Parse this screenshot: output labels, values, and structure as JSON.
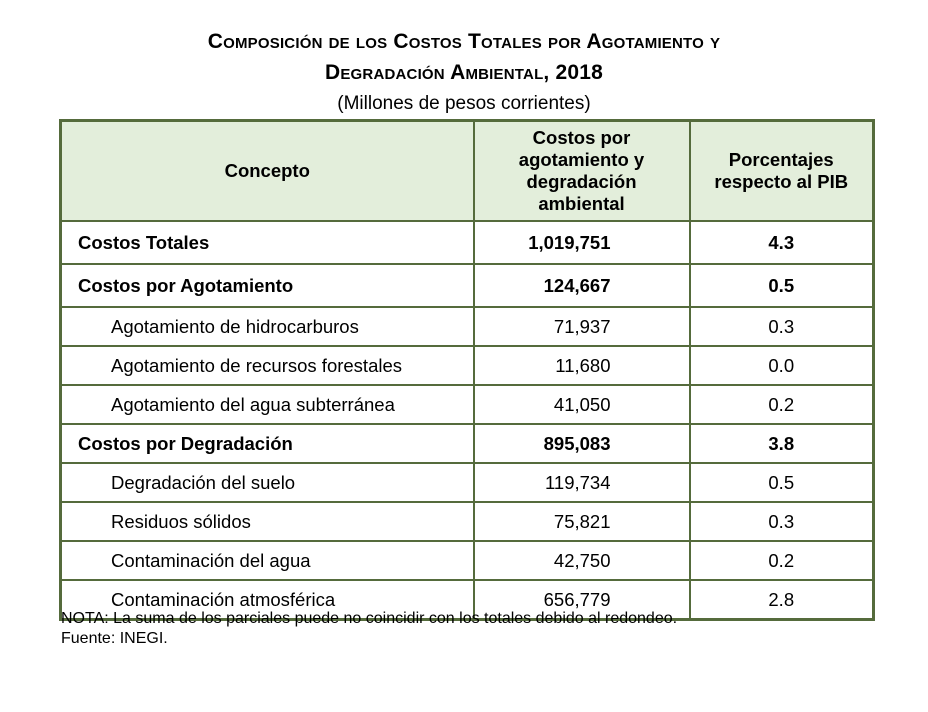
{
  "title_line1": "Composición de los Costos Totales por Agotamiento y",
  "title_line2": "Degradación Ambiental, 2018",
  "subtitle": "(Millones de pesos corrientes)",
  "headers": {
    "concepto": "Concepto",
    "costos": "Costos por agotamiento y degradación ambiental",
    "porcentajes": "Porcentajes respecto al PIB"
  },
  "rows": [
    {
      "concept": "Costos Totales",
      "value": "1,019,751",
      "pct": "4.3"
    },
    {
      "concept": "Costos por Agotamiento",
      "value": "124,667",
      "pct": "0.5"
    },
    {
      "concept": "Agotamiento de hidrocarburos",
      "value": "71,937",
      "pct": "0.3"
    },
    {
      "concept": "Agotamiento de recursos forestales",
      "value": "11,680",
      "pct": "0.0"
    },
    {
      "concept": "Agotamiento del agua subterránea",
      "value": "41,050",
      "pct": "0.2"
    },
    {
      "concept": "Costos por Degradación",
      "value": "895,083",
      "pct": "3.8"
    },
    {
      "concept": "Degradación del suelo",
      "value": "119,734",
      "pct": "0.5"
    },
    {
      "concept": "Residuos sólidos",
      "value": "75,821",
      "pct": "0.3"
    },
    {
      "concept": "Contaminación del agua",
      "value": "42,750",
      "pct": "0.2"
    },
    {
      "concept": "Contaminación atmosférica",
      "value": "656,779",
      "pct": "2.8"
    }
  ],
  "note": "NOTA: La suma de los parciales puede no coincidir con los totales debido al redondeo.",
  "source": "Fuente: INEGI.",
  "colors": {
    "border": "#556b3c",
    "header_bg": "#e3eedb"
  }
}
